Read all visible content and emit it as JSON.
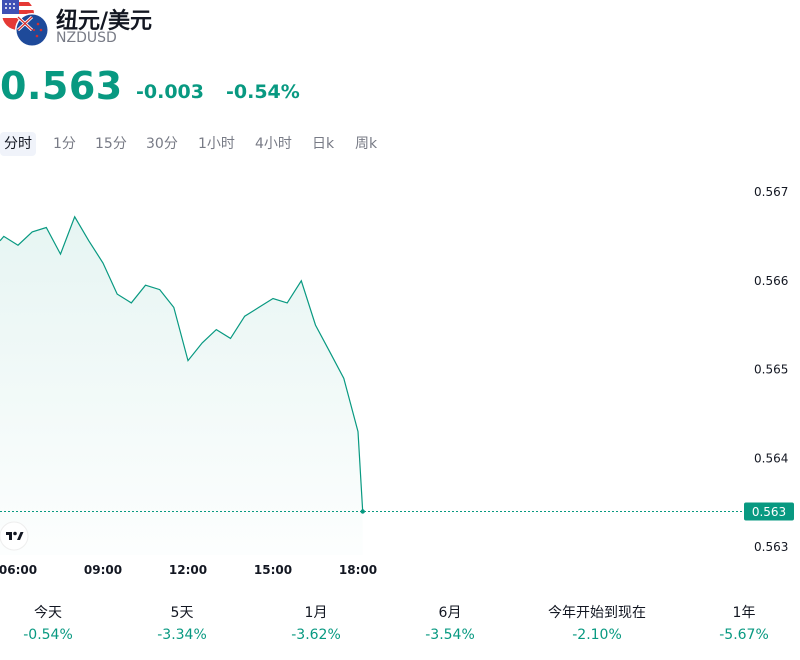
{
  "header": {
    "title": "纽元/美元",
    "symbol": "NZDUSD",
    "price": "0.563",
    "change": "-0.003",
    "change_pct": "-0.54%"
  },
  "tabs": [
    {
      "label": "分时",
      "active": true
    },
    {
      "label": "1分"
    },
    {
      "label": "15分"
    },
    {
      "label": "30分"
    },
    {
      "label": "1小时"
    },
    {
      "label": "4小时"
    },
    {
      "label": "日k"
    },
    {
      "label": "周k"
    }
  ],
  "chart_data": {
    "type": "area",
    "x": [
      "05:00",
      "05:30",
      "06:00",
      "06:30",
      "07:00",
      "07:30",
      "08:00",
      "08:30",
      "09:00",
      "09:30",
      "10:00",
      "10:30",
      "11:00",
      "11:30",
      "12:00",
      "12:30",
      "13:00",
      "13:30",
      "14:00",
      "14:30",
      "15:00",
      "15:30",
      "16:00",
      "16:30",
      "17:00",
      "17:30",
      "18:00",
      "18:10"
    ],
    "values": [
      0.56645,
      0.5665,
      0.5664,
      0.56655,
      0.5666,
      0.5663,
      0.56672,
      0.56645,
      0.5662,
      0.56585,
      0.56575,
      0.56595,
      0.5659,
      0.5657,
      0.5651,
      0.5653,
      0.56545,
      0.56535,
      0.5656,
      0.5657,
      0.5658,
      0.56575,
      0.566,
      0.5655,
      0.5652,
      0.5649,
      0.5643,
      0.5634
    ],
    "x_ticks": [
      "06:00",
      "09:00",
      "12:00",
      "15:00",
      "18:00"
    ],
    "y_ticks": [
      "0.567",
      "0.566",
      "0.565",
      "0.564",
      "0.563"
    ],
    "last_value_label": "0.563",
    "ylim": [
      0.5629,
      0.567
    ],
    "line_color": "#089981"
  },
  "periods": [
    {
      "label": "今天",
      "value": "-0.54%"
    },
    {
      "label": "5天",
      "value": "-3.34%"
    },
    {
      "label": "1月",
      "value": "-3.62%"
    },
    {
      "label": "6月",
      "value": "-3.54%"
    },
    {
      "label": "今年开始到现在",
      "value": "-2.10%"
    },
    {
      "label": "1年",
      "value": "-5.67%"
    }
  ],
  "colors": {
    "up_down_accent": "#089981",
    "text": "#131722",
    "muted": "#787b86"
  }
}
